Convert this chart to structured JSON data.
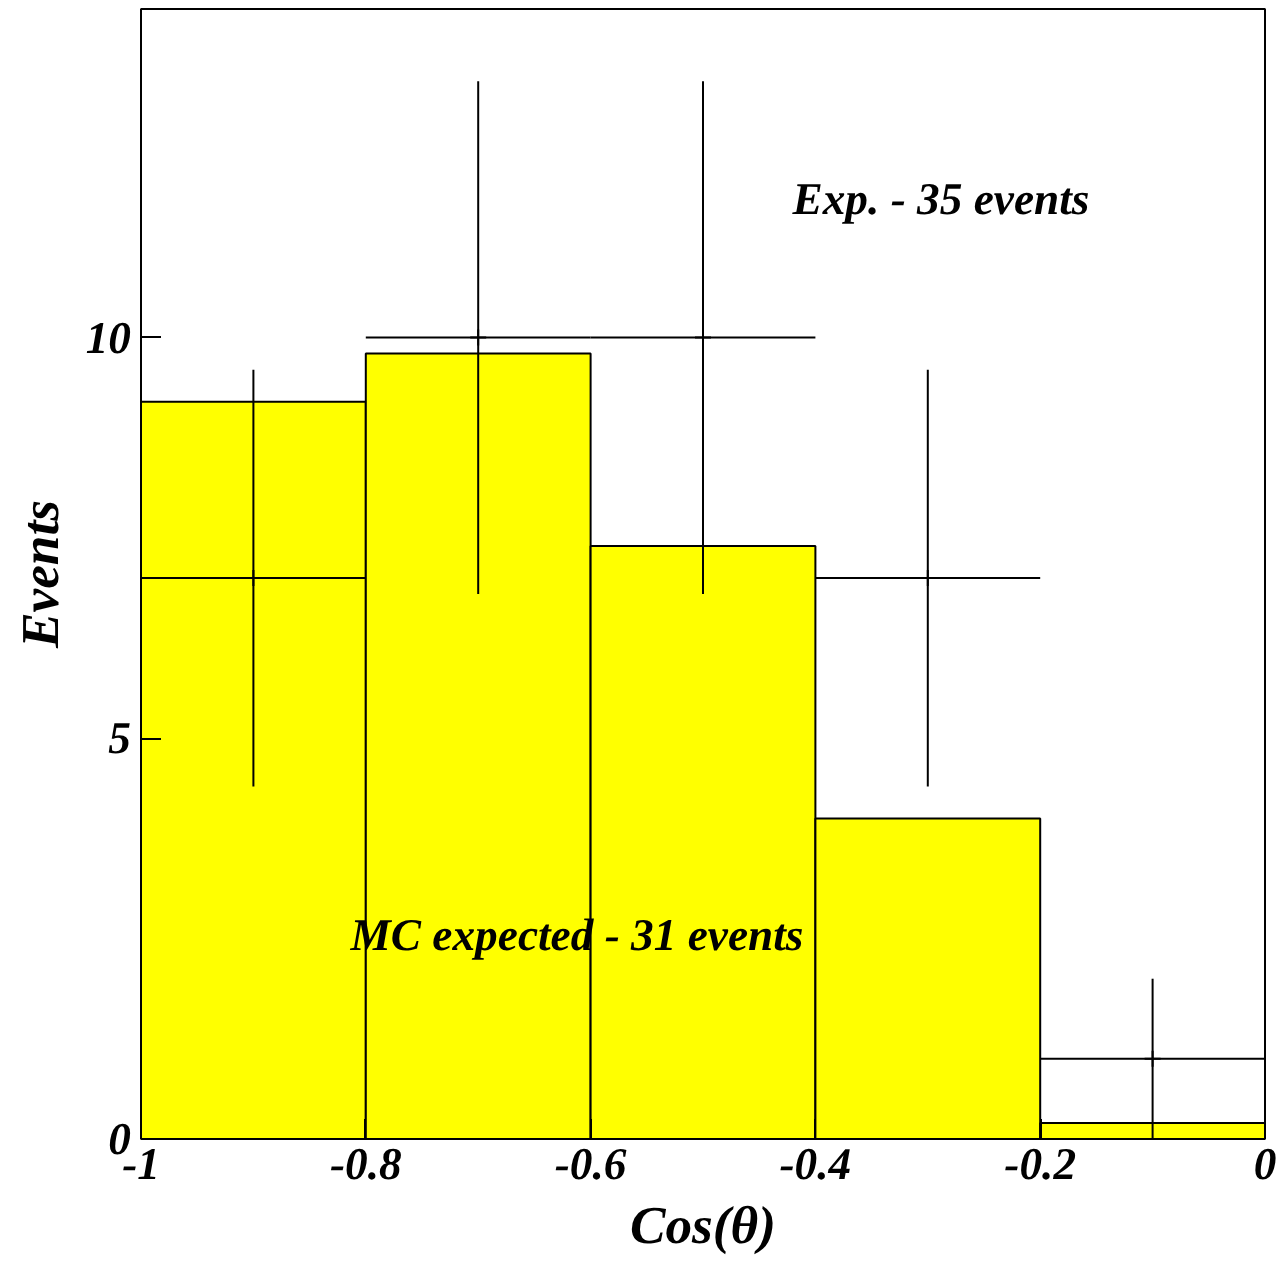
{
  "chart_data": {
    "type": "histogram",
    "xlabel": "Cos(θ)",
    "ylabel": "Events",
    "bins": [
      -1,
      -0.8,
      -0.6,
      -0.4,
      -0.2,
      0
    ],
    "series": [
      {
        "type": "histogram",
        "color": "#ffff00",
        "values": [
          9.2,
          9.8,
          7.4,
          4.0,
          0.2
        ]
      },
      {
        "type": "scatter",
        "color": "#000000",
        "x": [
          -0.9,
          -0.7,
          -0.5,
          -0.3,
          -0.1
        ],
        "values": [
          7,
          10,
          10,
          7,
          1
        ],
        "errors": [
          2.6,
          3.2,
          3.2,
          2.6,
          1
        ],
        "xerrors": [
          0.1,
          0.1,
          0.1,
          0.1,
          0.1
        ],
        "marker": "cross"
      }
    ],
    "annotations": [
      "Exp. - 35 events",
      "MC expected - 31 events"
    ],
    "xlim": [
      -1,
      0
    ],
    "ylim": [
      0,
      14.1
    ],
    "xticks": [
      -1,
      -0.8,
      -0.6,
      -0.4,
      -0.2,
      0
    ],
    "yticks": [
      0,
      5,
      10
    ],
    "grid": false
  }
}
